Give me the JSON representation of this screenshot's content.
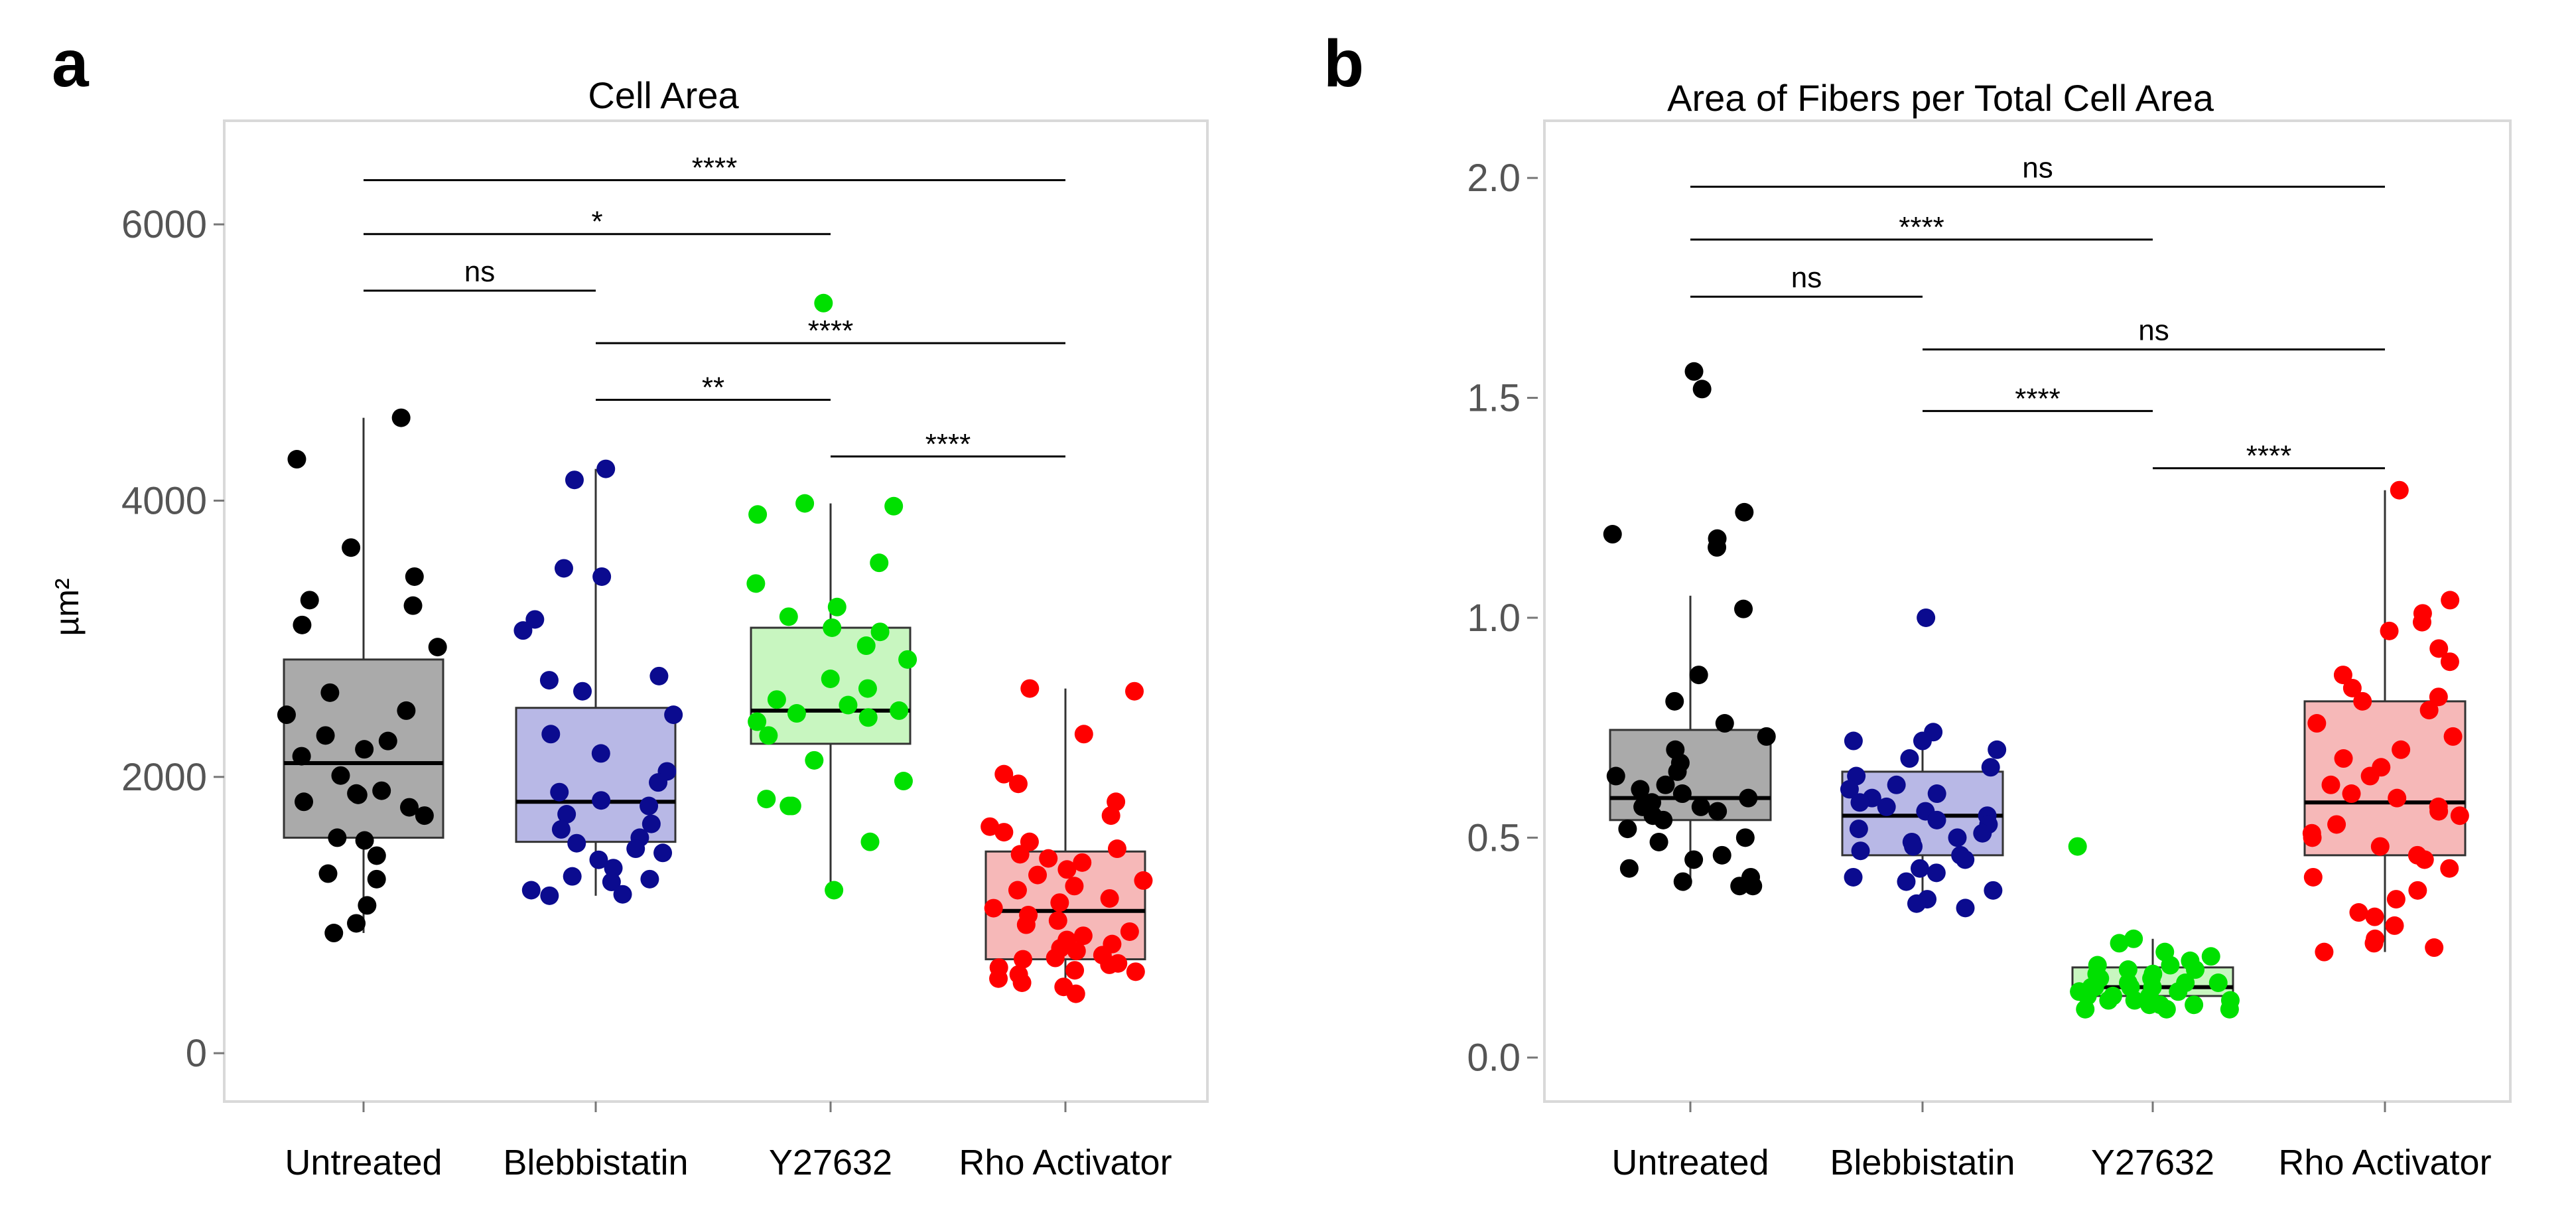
{
  "chart_data": [
    {
      "panel": "a",
      "type": "box",
      "title": "Cell Area",
      "xlabel": "",
      "ylabel": "µm²",
      "ylim": [
        -350,
        6750
      ],
      "yticks": [
        0,
        2000,
        4000,
        6000
      ],
      "categories": [
        "Untreated",
        "Blebbistatin",
        "Y27632",
        "Rho Activator"
      ],
      "colors": {
        "Untreated": {
          "point": "#000000",
          "fill": "#aaaaaa"
        },
        "Blebbistatin": {
          "point": "#0b0b8f",
          "fill": "#b8b8e6"
        },
        "Y27632": {
          "point": "#00e000",
          "fill": "#c8f6c0"
        },
        "Rho Activator": {
          "point": "#ff0000",
          "fill": "#f6b8b8"
        }
      },
      "boxes": [
        {
          "category": "Untreated",
          "q1": 1560,
          "median": 2100,
          "q3": 2850,
          "whisker_low": 870,
          "whisker_high": 4600
        },
        {
          "category": "Blebbistatin",
          "q1": 1530,
          "median": 1820,
          "q3": 2500,
          "whisker_low": 1140,
          "whisker_high": 4230
        },
        {
          "category": "Y27632",
          "q1": 2240,
          "median": 2480,
          "q3": 3080,
          "whisker_low": 1180,
          "whisker_high": 3980
        },
        {
          "category": "Rho Activator",
          "q1": 680,
          "median": 1030,
          "q3": 1460,
          "whisker_low": 430,
          "whisker_high": 2640
        }
      ],
      "points": [
        {
          "category": "Untreated",
          "values": [
            4600,
            4300,
            3660,
            3450,
            3280,
            3240,
            3100,
            2940,
            2610,
            2480,
            2450,
            2300,
            2260,
            2200,
            2150,
            2010,
            1900,
            1880,
            1870,
            1820,
            1780,
            1720,
            1560,
            1540,
            1430,
            1300,
            1260,
            1070,
            940,
            870
          ]
        },
        {
          "category": "Blebbistatin",
          "values": [
            4230,
            4150,
            3510,
            3450,
            3140,
            3060,
            2730,
            2700,
            2620,
            2450,
            2310,
            2170,
            2040,
            1960,
            1890,
            1830,
            1790,
            1730,
            1660,
            1620,
            1560,
            1520,
            1480,
            1450,
            1400,
            1340,
            1280,
            1260,
            1240,
            1180,
            1150,
            1140
          ]
        },
        {
          "category": "Y27632",
          "values": [
            5430,
            3980,
            3960,
            3900,
            3550,
            3400,
            3230,
            3160,
            3080,
            3050,
            2950,
            2850,
            2710,
            2640,
            2560,
            2520,
            2480,
            2460,
            2430,
            2400,
            2300,
            2120,
            1970,
            1840,
            1790,
            1790,
            1530,
            1180
          ]
        },
        {
          "category": "Rho Activator",
          "values": [
            2640,
            2620,
            2310,
            2020,
            1950,
            1820,
            1720,
            1640,
            1600,
            1530,
            1480,
            1440,
            1410,
            1380,
            1330,
            1290,
            1250,
            1210,
            1180,
            1120,
            1090,
            1050,
            1000,
            960,
            930,
            880,
            850,
            820,
            790,
            760,
            740,
            710,
            690,
            680,
            650,
            640,
            620,
            600,
            590,
            570,
            540,
            510,
            480,
            430
          ]
        }
      ],
      "comparisons": [
        {
          "from": "Untreated",
          "to": "Rho Activator",
          "y": 6320,
          "label": "****"
        },
        {
          "from": "Untreated",
          "to": "Y27632",
          "y": 5930,
          "label": "*"
        },
        {
          "from": "Untreated",
          "to": "Blebbistatin",
          "y": 5520,
          "label": "ns"
        },
        {
          "from": "Blebbistatin",
          "to": "Rho Activator",
          "y": 5140,
          "label": "****"
        },
        {
          "from": "Blebbistatin",
          "to": "Y27632",
          "y": 4730,
          "label": "**"
        },
        {
          "from": "Y27632",
          "to": "Rho Activator",
          "y": 4320,
          "label": "****"
        }
      ]
    },
    {
      "panel": "b",
      "type": "box",
      "title": "Area of Fibers per Total Cell Area",
      "xlabel": "",
      "ylabel": "",
      "ylim": [
        -0.1,
        2.13
      ],
      "yticks": [
        0.0,
        0.5,
        1.0,
        1.5,
        2.0
      ],
      "ytick_labels": [
        "0.0",
        "0.5",
        "1.0",
        "1.5",
        "2.0"
      ],
      "categories": [
        "Untreated",
        "Blebbistatin",
        "Y27632",
        "Rho Activator"
      ],
      "colors": {
        "Untreated": {
          "point": "#000000",
          "fill": "#aaaaaa"
        },
        "Blebbistatin": {
          "point": "#0b0b8f",
          "fill": "#b8b8e6"
        },
        "Y27632": {
          "point": "#00e000",
          "fill": "#c8f6c0"
        },
        "Rho Activator": {
          "point": "#ff0000",
          "fill": "#f6b8b8"
        }
      },
      "boxes": [
        {
          "category": "Untreated",
          "q1": 0.54,
          "median": 0.59,
          "q3": 0.745,
          "whisker_low": 0.39,
          "whisker_high": 1.05
        },
        {
          "category": "Blebbistatin",
          "q1": 0.46,
          "median": 0.55,
          "q3": 0.65,
          "whisker_low": 0.34,
          "whisker_high": 0.74
        },
        {
          "category": "Y27632",
          "q1": 0.14,
          "median": 0.16,
          "q3": 0.205,
          "whisker_low": 0.11,
          "whisker_high": 0.27
        },
        {
          "category": "Rho Activator",
          "q1": 0.46,
          "median": 0.58,
          "q3": 0.81,
          "whisker_low": 0.24,
          "whisker_high": 1.29
        }
      ],
      "points": [
        {
          "category": "Untreated",
          "values": [
            1.56,
            1.52,
            1.24,
            1.19,
            1.18,
            1.16,
            1.02,
            0.87,
            0.81,
            0.76,
            0.73,
            0.7,
            0.67,
            0.65,
            0.64,
            0.62,
            0.61,
            0.6,
            0.59,
            0.58,
            0.57,
            0.57,
            0.56,
            0.55,
            0.54,
            0.52,
            0.5,
            0.49,
            0.46,
            0.45,
            0.43,
            0.41,
            0.4,
            0.39,
            0.39
          ]
        },
        {
          "category": "Blebbistatin",
          "values": [
            1.0,
            0.74,
            0.72,
            0.72,
            0.7,
            0.68,
            0.66,
            0.64,
            0.62,
            0.61,
            0.6,
            0.59,
            0.58,
            0.57,
            0.56,
            0.55,
            0.54,
            0.53,
            0.52,
            0.51,
            0.5,
            0.49,
            0.48,
            0.47,
            0.46,
            0.45,
            0.43,
            0.42,
            0.41,
            0.4,
            0.38,
            0.36,
            0.35,
            0.34
          ]
        },
        {
          "category": "Y27632",
          "values": [
            0.48,
            0.27,
            0.26,
            0.24,
            0.23,
            0.22,
            0.21,
            0.21,
            0.2,
            0.2,
            0.19,
            0.19,
            0.18,
            0.18,
            0.18,
            0.17,
            0.17,
            0.17,
            0.16,
            0.16,
            0.16,
            0.16,
            0.15,
            0.15,
            0.15,
            0.14,
            0.14,
            0.14,
            0.13,
            0.13,
            0.13,
            0.12,
            0.12,
            0.12,
            0.11,
            0.11,
            0.11
          ]
        },
        {
          "category": "Rho Activator",
          "values": [
            1.29,
            1.04,
            1.01,
            0.99,
            0.97,
            0.93,
            0.9,
            0.87,
            0.84,
            0.82,
            0.81,
            0.79,
            0.76,
            0.73,
            0.7,
            0.68,
            0.66,
            0.64,
            0.62,
            0.6,
            0.59,
            0.57,
            0.56,
            0.55,
            0.53,
            0.51,
            0.5,
            0.48,
            0.46,
            0.45,
            0.43,
            0.41,
            0.38,
            0.36,
            0.33,
            0.32,
            0.3,
            0.27,
            0.26,
            0.25,
            0.24
          ]
        }
      ],
      "comparisons": [
        {
          "from": "Untreated",
          "to": "Rho Activator",
          "y": 1.98,
          "label": "ns"
        },
        {
          "from": "Untreated",
          "to": "Y27632",
          "y": 1.86,
          "label": "****"
        },
        {
          "from": "Untreated",
          "to": "Blebbistatin",
          "y": 1.73,
          "label": "ns"
        },
        {
          "from": "Blebbistatin",
          "to": "Rho Activator",
          "y": 1.61,
          "label": "ns"
        },
        {
          "from": "Blebbistatin",
          "to": "Y27632",
          "y": 1.47,
          "label": "****"
        },
        {
          "from": "Y27632",
          "to": "Rho Activator",
          "y": 1.34,
          "label": "****"
        }
      ]
    }
  ]
}
